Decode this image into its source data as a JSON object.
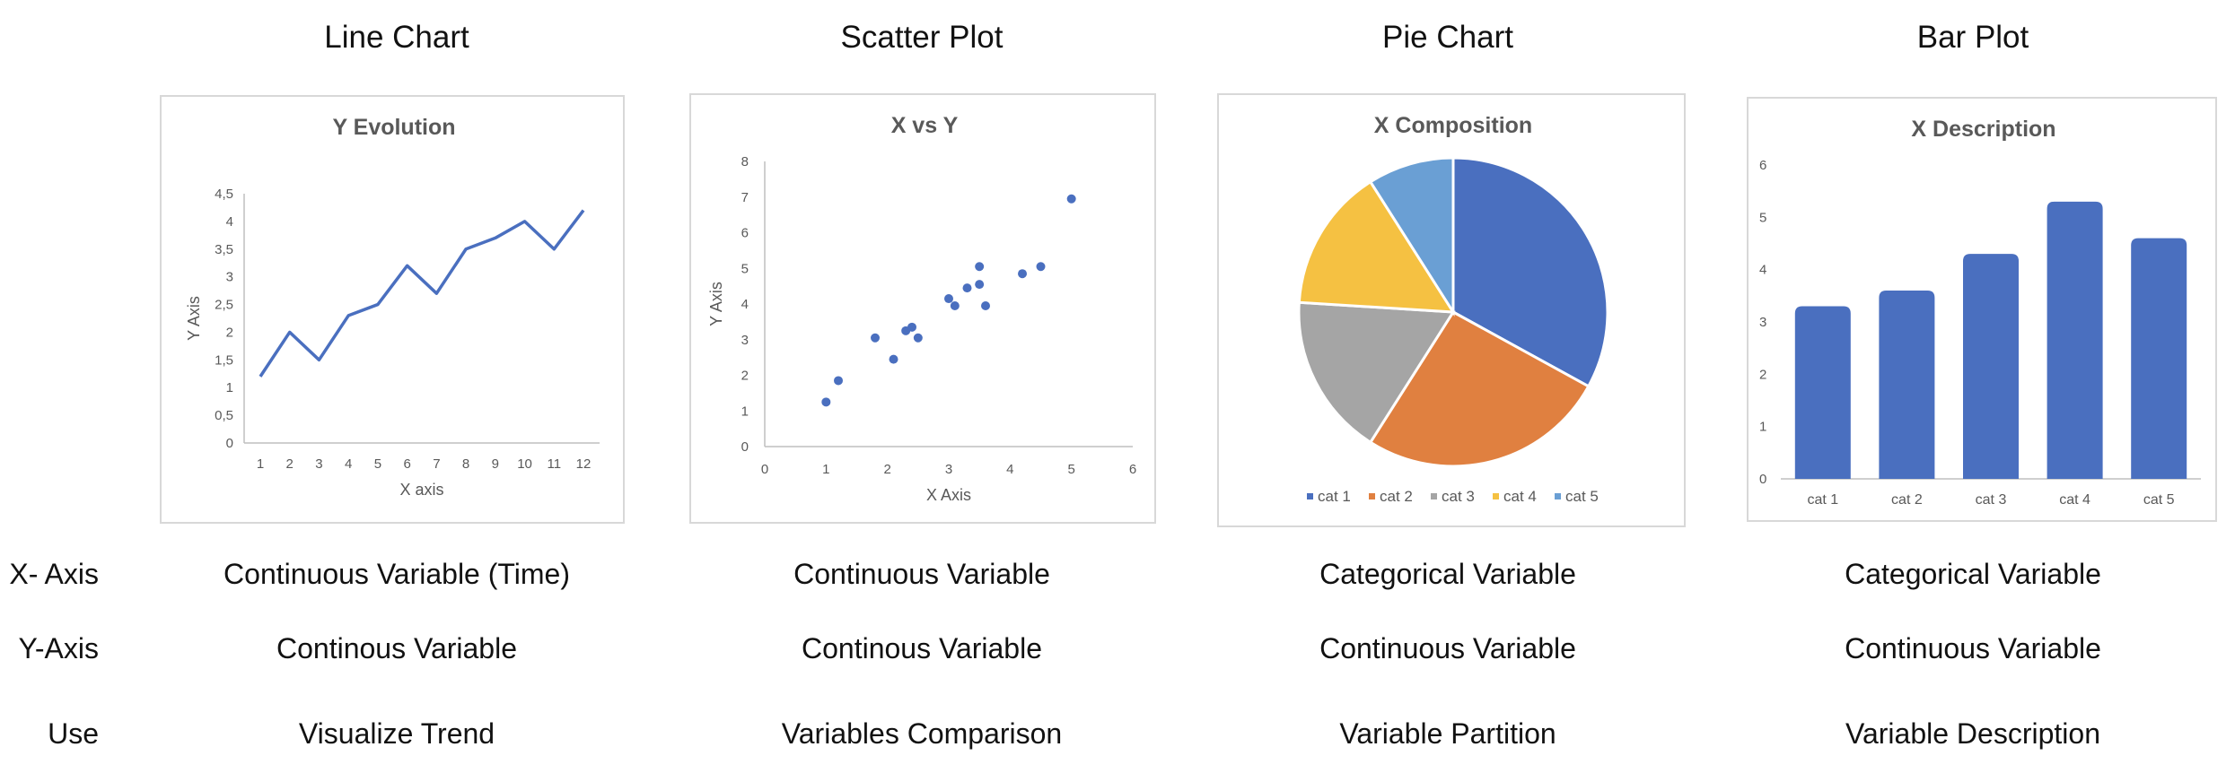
{
  "columns": {
    "line": "Line Chart",
    "scatter": "Scatter Plot",
    "pie": "Pie Chart",
    "bar": "Bar Plot"
  },
  "rows": {
    "x_axis": {
      "label": "X- Axis",
      "line": "Continuous Variable (Time)",
      "scatter": "Continuous Variable",
      "pie": "Categorical Variable",
      "bar": "Categorical Variable"
    },
    "y_axis": {
      "label": "Y-Axis",
      "line": "Continous Variable",
      "scatter": "Continous Variable",
      "pie": "Continuous Variable",
      "bar": "Continuous Variable"
    },
    "use": {
      "label": "Use",
      "line": "Visualize Trend",
      "scatter": "Variables Comparison",
      "pie": "Variable Partition",
      "bar": "Variable Description"
    }
  },
  "chart_data": [
    {
      "type": "line",
      "title": "Y Evolution",
      "xlabel": "X axis",
      "ylabel": "Y Axis",
      "x": [
        1,
        2,
        3,
        4,
        5,
        6,
        7,
        8,
        9,
        10,
        11,
        12
      ],
      "y": [
        1.2,
        2.0,
        1.5,
        2.3,
        2.5,
        3.2,
        2.7,
        3.5,
        3.7,
        4.0,
        3.5,
        4.2
      ],
      "xlim": [
        1,
        12
      ],
      "ylim": [
        0,
        4.5
      ],
      "yticks": [
        "0",
        "0,5",
        "1",
        "1,5",
        "2",
        "2,5",
        "3",
        "3,5",
        "4",
        "4,5"
      ],
      "color": "#4a6fbf",
      "grid": false
    },
    {
      "type": "scatter",
      "title": "X vs Y",
      "xlabel": "X Axis",
      "ylabel": "Y Axis",
      "points": [
        [
          1.0,
          1.25
        ],
        [
          1.2,
          1.85
        ],
        [
          1.8,
          3.05
        ],
        [
          2.1,
          2.45
        ],
        [
          2.3,
          3.25
        ],
        [
          2.4,
          3.35
        ],
        [
          2.5,
          3.05
        ],
        [
          3.0,
          4.15
        ],
        [
          3.1,
          3.95
        ],
        [
          3.3,
          4.45
        ],
        [
          3.5,
          4.55
        ],
        [
          3.5,
          5.05
        ],
        [
          3.6,
          3.95
        ],
        [
          4.2,
          4.85
        ],
        [
          4.5,
          5.05
        ],
        [
          5.0,
          6.95
        ]
      ],
      "xlim": [
        0,
        6
      ],
      "ylim": [
        0,
        8
      ],
      "color": "#4a6fbf",
      "grid": false
    },
    {
      "type": "pie",
      "title": "X Composition",
      "categories": [
        "cat 1",
        "cat 2",
        "cat 3",
        "cat 4",
        "cat 5"
      ],
      "values": [
        33,
        26,
        17,
        15,
        9
      ],
      "colors": [
        "#4a6fbf",
        "#e08040",
        "#a5a5a5",
        "#f5c142",
        "#6a9fd4"
      ],
      "legend": "bottom"
    },
    {
      "type": "bar",
      "title": "X Description",
      "categories": [
        "cat 1",
        "cat 2",
        "cat 3",
        "cat 4",
        "cat 5"
      ],
      "values": [
        3.3,
        3.6,
        4.3,
        5.3,
        4.6
      ],
      "ylim": [
        0,
        6
      ],
      "color": "#4a6fbf",
      "grid": false
    }
  ]
}
